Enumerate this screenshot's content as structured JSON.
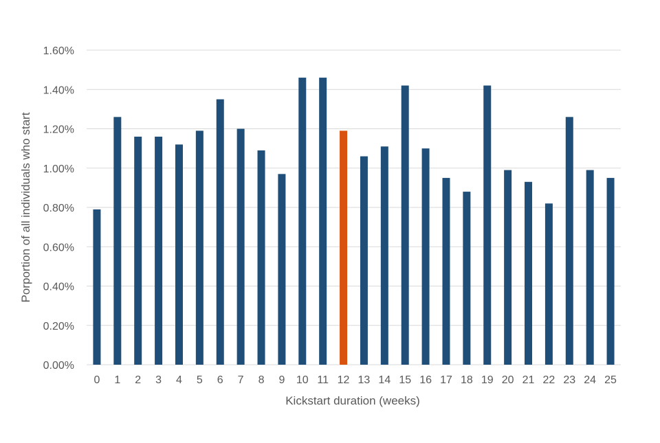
{
  "chart_data": {
    "type": "bar",
    "title": "",
    "xlabel": "Kickstart duration (weeks)",
    "ylabel": "Porportion of  all individuals who start",
    "categories": [
      "0",
      "1",
      "2",
      "3",
      "4",
      "5",
      "6",
      "7",
      "8",
      "9",
      "10",
      "11",
      "12",
      "13",
      "14",
      "15",
      "16",
      "17",
      "18",
      "19",
      "20",
      "21",
      "22",
      "23",
      "24",
      "25"
    ],
    "values": [
      0.0079,
      0.0126,
      0.0116,
      0.0116,
      0.0112,
      0.0119,
      0.0135,
      0.012,
      0.0109,
      0.0097,
      0.0146,
      0.0146,
      0.0119,
      0.0106,
      0.0111,
      0.0142,
      0.011,
      0.0095,
      0.0088,
      0.0142,
      0.0099,
      0.0093,
      0.0082,
      0.0126,
      0.0099,
      0.0095
    ],
    "highlight_index": 12,
    "ylim": [
      0,
      0.016
    ],
    "yticks": [
      0,
      0.002,
      0.004,
      0.006,
      0.008,
      0.01,
      0.012,
      0.014,
      0.016
    ],
    "ytick_labels": [
      "0.00%",
      "0.20%",
      "0.40%",
      "0.60%",
      "0.80%",
      "1.00%",
      "1.20%",
      "1.40%",
      "1.60%"
    ],
    "grid": true,
    "legend": "none",
    "colors": {
      "bar": "#1f4e79",
      "highlight": "#d9530f",
      "grid": "#d9d9d9",
      "text": "#595959"
    }
  }
}
